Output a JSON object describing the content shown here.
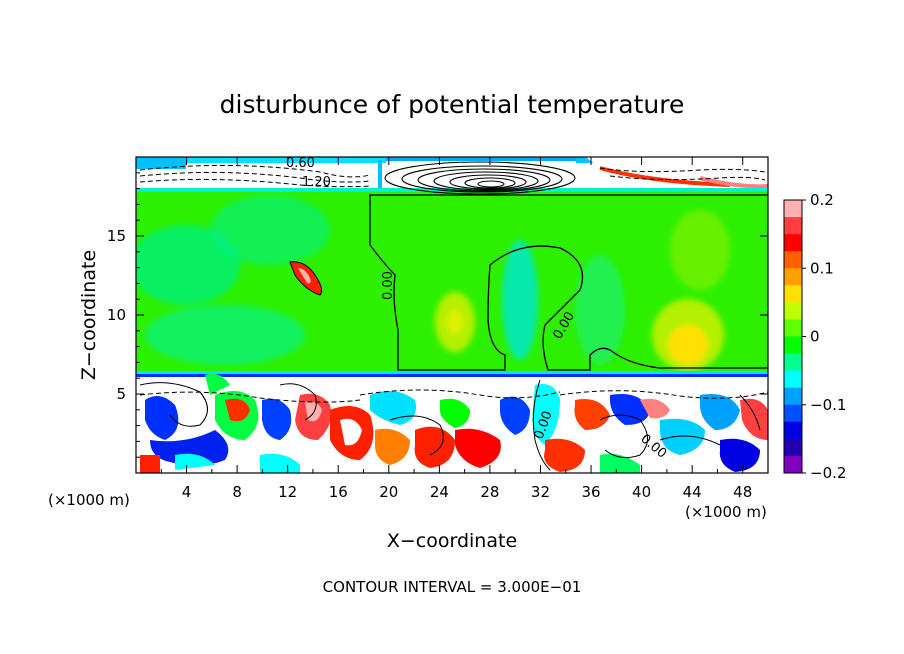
{
  "chart_data": {
    "type": "heatmap",
    "title": "disturbunce of potential temperature",
    "xlabel": "X−coordinate",
    "ylabel": "Z−coordinate",
    "x_unit": "(×1000 m)",
    "y_unit": "(×1000 m)",
    "xlim": [
      0,
      50
    ],
    "ylim": [
      0,
      20
    ],
    "x_ticks": [
      "4",
      "8",
      "12",
      "16",
      "20",
      "24",
      "28",
      "32",
      "36",
      "40",
      "44",
      "48"
    ],
    "y_ticks": [
      "5",
      "10",
      "15"
    ],
    "colorbar": {
      "range": [
        -0.2,
        0.2
      ],
      "ticks": [
        "0.2",
        "0.1",
        "0",
        "−0.1",
        "−0.2"
      ],
      "colors": [
        "#ffb0b0",
        "#ff4040",
        "#ff0000",
        "#ff6000",
        "#ffa000",
        "#ffe000",
        "#c0ff00",
        "#60ff00",
        "#00ff00",
        "#00ff90",
        "#00ffff",
        "#00a0ff",
        "#0050ff",
        "#0000e0",
        "#2000b0",
        "#8000c0"
      ]
    },
    "contour_labels": [
      "0.60",
      "1.20",
      "0.00",
      "0.00",
      "0.00",
      "0.00"
    ],
    "footer": "CONTOUR INTERVAL = 3.000E−01"
  }
}
